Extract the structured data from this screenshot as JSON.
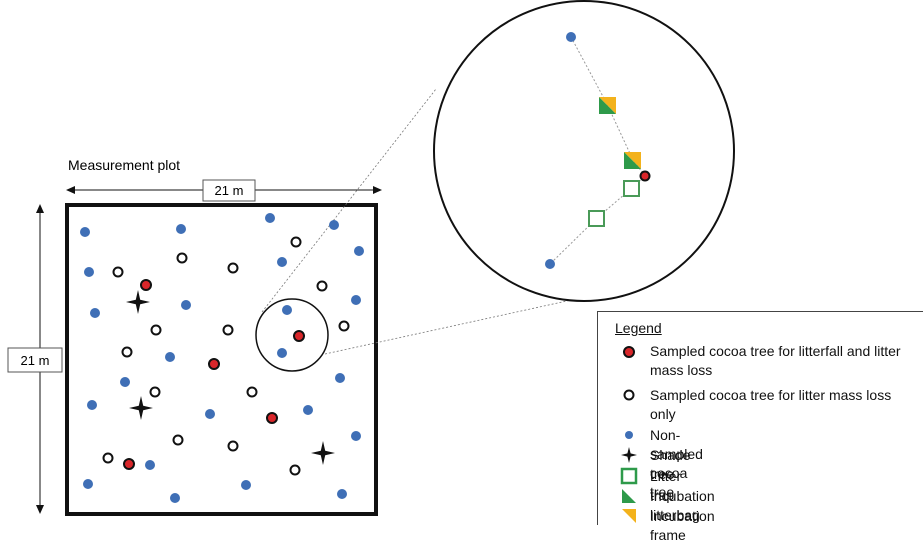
{
  "plot": {
    "title": "Measurement plot",
    "width_label": "21 m",
    "height_label": "21 m"
  },
  "legend": {
    "title": "Legend",
    "items": [
      {
        "symbol": "red-dot",
        "label": "Sampled cocoa tree for litterfall and litter mass loss"
      },
      {
        "symbol": "open-circle",
        "label": "Sampled cocoa tree for litter mass loss only"
      },
      {
        "symbol": "blue-dot",
        "label": "Non-sampled cocoa tree"
      },
      {
        "symbol": "star",
        "label": "Shade tree"
      },
      {
        "symbol": "green-square",
        "label": "Litter trap"
      },
      {
        "symbol": "green-triangle",
        "label": "Incubation litterbag"
      },
      {
        "symbol": "yellow-triangle",
        "label": "Incubation frame"
      }
    ]
  },
  "colors": {
    "blue": "#3f6fb6",
    "red": "#d9262a",
    "green": "#2e9a4a",
    "yellow": "#f3b21c",
    "trap_green": "#4a9a58"
  }
}
